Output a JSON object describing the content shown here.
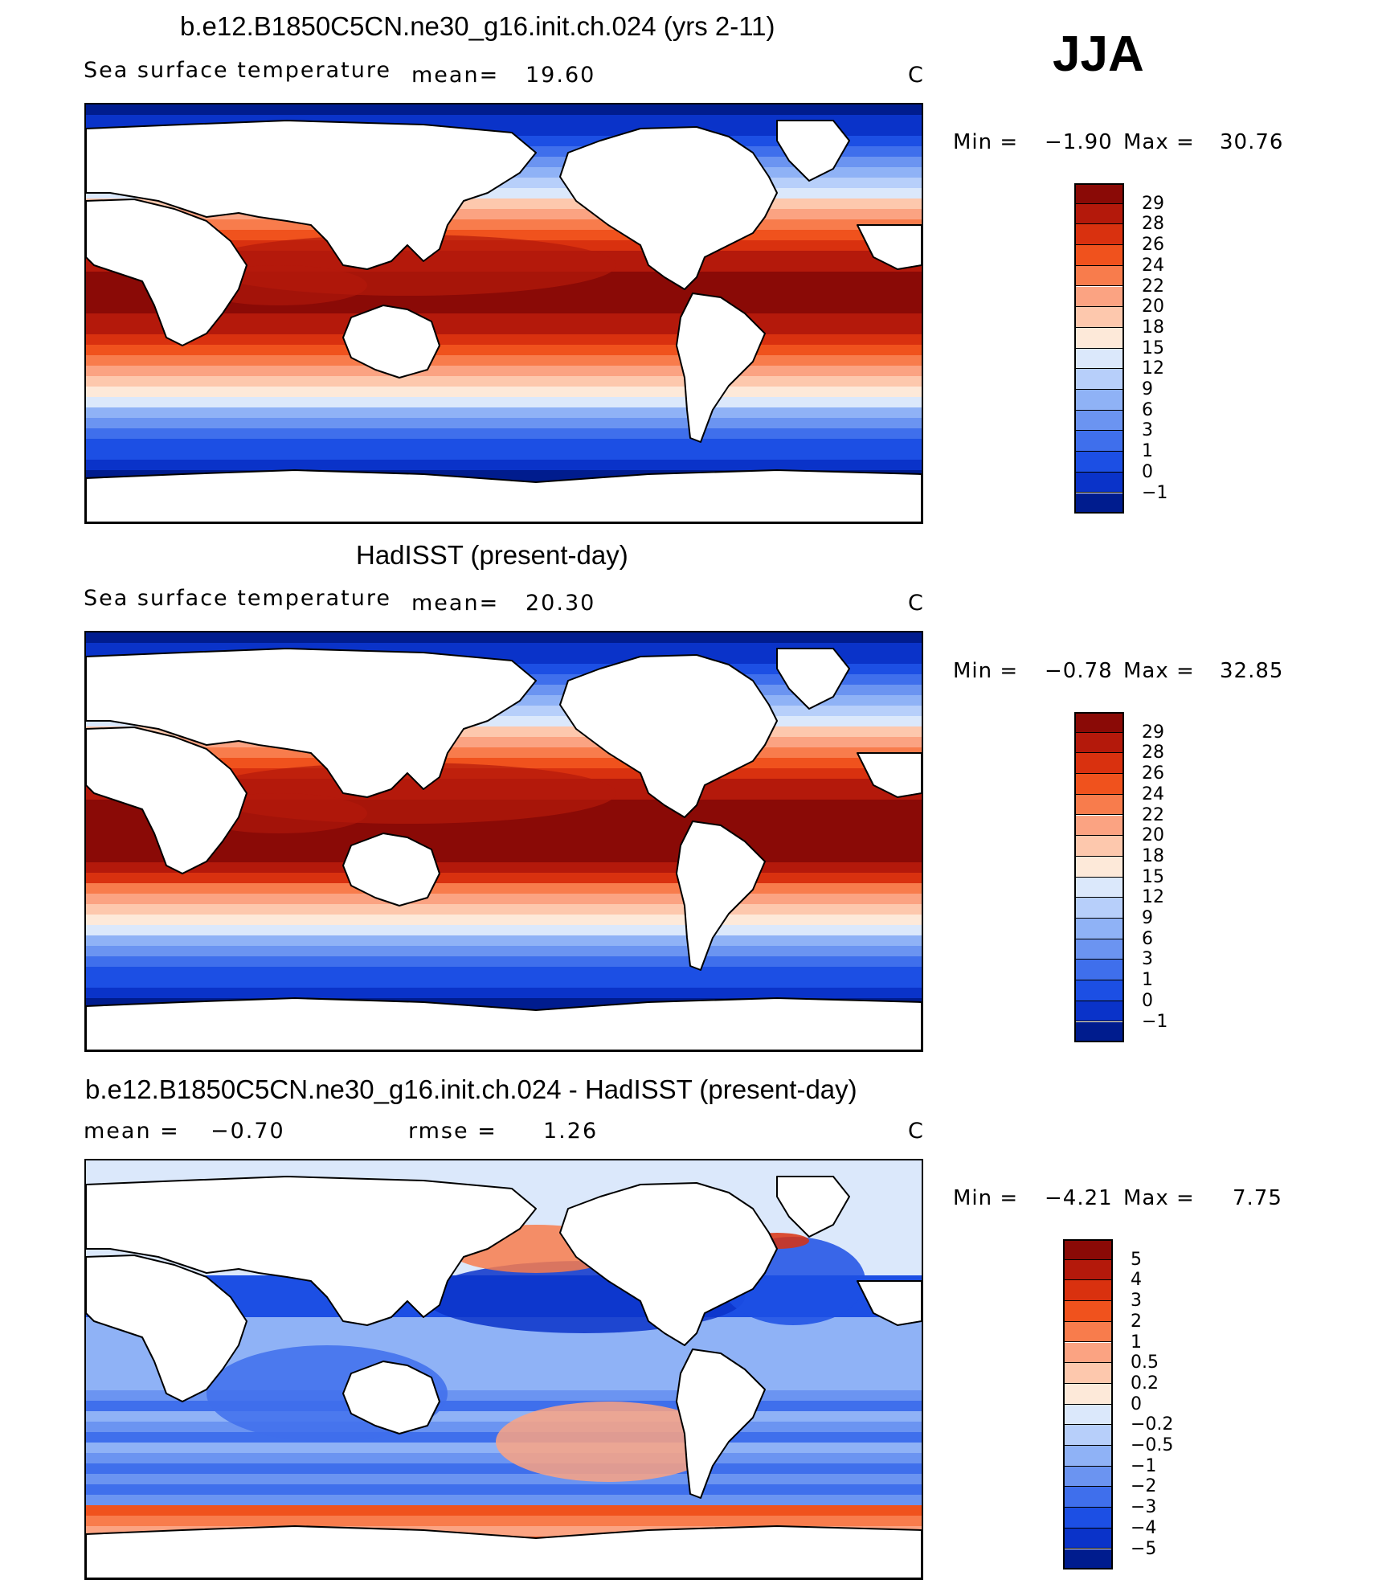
{
  "season": "JJA",
  "panels": [
    {
      "title": "b.e12.B1850C5CN.ne30_g16.init.ch.024 (yrs 2-11)",
      "left_label": "Sea surface temperature",
      "stat1_label": "mean=",
      "stat1_value": "19.60",
      "stat2_label": "",
      "stat2_value": "",
      "units": "C",
      "min_label": "Min =",
      "min_value": "−1.90",
      "max_label": "Max =",
      "max_value": "30.76",
      "colorbar": {
        "labels": [
          "29",
          "28",
          "26",
          "24",
          "22",
          "20",
          "18",
          "15",
          "12",
          "9",
          "6",
          "3",
          "1",
          "0",
          "−1"
        ],
        "colors": [
          "#8a0a06",
          "#b4190b",
          "#d9310f",
          "#f0521d",
          "#f87c4c",
          "#fba382",
          "#fdc8ad",
          "#fde9d9",
          "#dbe8fb",
          "#b7cffa",
          "#8fb2f6",
          "#6b94f1",
          "#3f6fec",
          "#1c4fe4",
          "#0a33c9",
          "#001c8e"
        ]
      },
      "map_type": "sst"
    },
    {
      "title": "HadISST (present-day)",
      "left_label": "Sea surface temperature",
      "stat1_label": "mean=",
      "stat1_value": "20.30",
      "stat2_label": "",
      "stat2_value": "",
      "units": "C",
      "min_label": "Min =",
      "min_value": "−0.78",
      "max_label": "Max =",
      "max_value": "32.85",
      "colorbar": {
        "labels": [
          "29",
          "28",
          "26",
          "24",
          "22",
          "20",
          "18",
          "15",
          "12",
          "9",
          "6",
          "3",
          "1",
          "0",
          "−1"
        ],
        "colors": [
          "#8a0a06",
          "#b4190b",
          "#d9310f",
          "#f0521d",
          "#f87c4c",
          "#fba382",
          "#fdc8ad",
          "#fde9d9",
          "#dbe8fb",
          "#b7cffa",
          "#8fb2f6",
          "#6b94f1",
          "#3f6fec",
          "#1c4fe4",
          "#0a33c9",
          "#001c8e"
        ]
      },
      "map_type": "sst_obs"
    },
    {
      "title": "b.e12.B1850C5CN.ne30_g16.init.ch.024 - HadISST (present-day)",
      "left_label": "",
      "stat1_label": "mean =",
      "stat1_value": "−0.70",
      "stat2_label": "rmse =",
      "stat2_value": "1.26",
      "units": "C",
      "min_label": "Min =",
      "min_value": "−4.21",
      "max_label": "Max =",
      "max_value": "7.75",
      "colorbar": {
        "labels": [
          "5",
          "4",
          "3",
          "2",
          "1",
          "0.5",
          "0.2",
          "0",
          "−0.2",
          "−0.5",
          "−1",
          "−2",
          "−3",
          "−4",
          "−5"
        ],
        "colors": [
          "#8a0a06",
          "#b4190b",
          "#d9310f",
          "#f0521d",
          "#f87c4c",
          "#fba382",
          "#fdc8ad",
          "#fde9d9",
          "#dbe8fb",
          "#b7cffa",
          "#8fb2f6",
          "#6b94f1",
          "#3f6fec",
          "#1c4fe4",
          "#0a33c9",
          "#001c8e"
        ]
      },
      "map_type": "diff"
    }
  ]
}
